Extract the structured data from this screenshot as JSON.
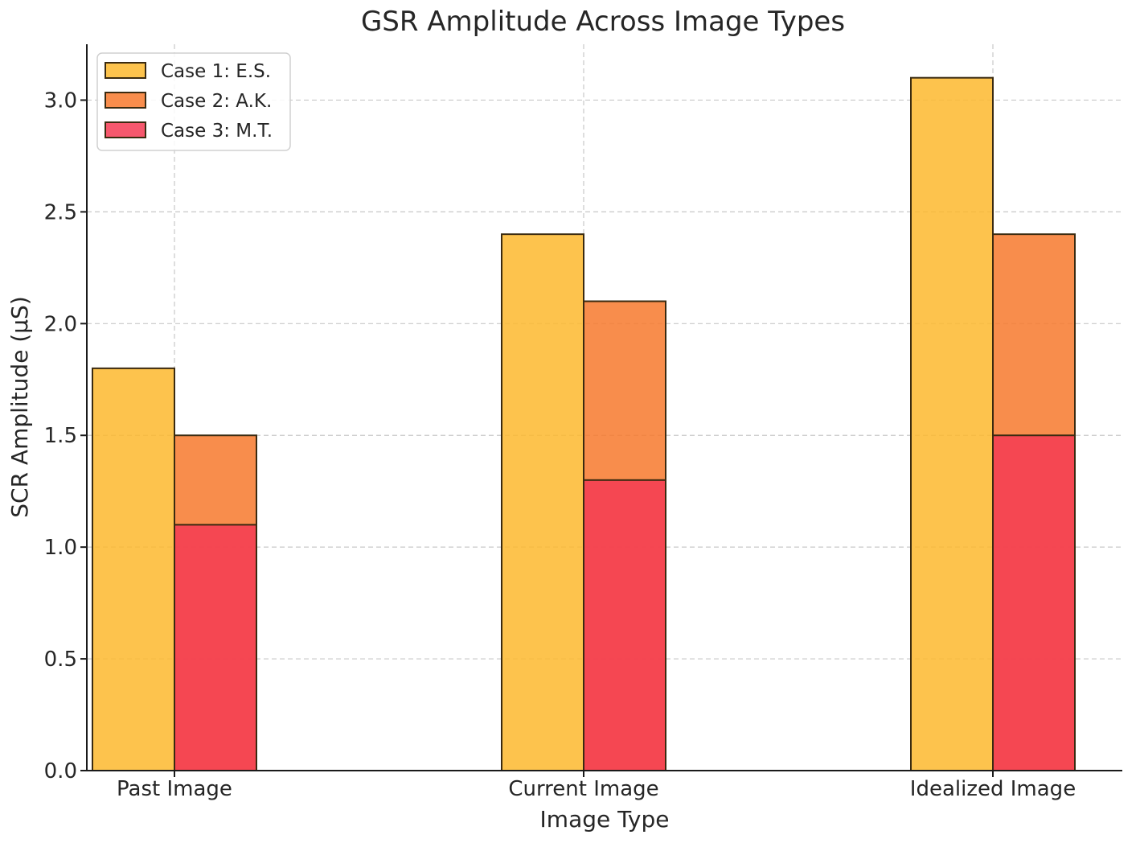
{
  "chart_data": {
    "type": "bar",
    "title": "GSR Amplitude Across Image Types",
    "xlabel": "Image Type",
    "ylabel": "SCR Amplitude (µS)",
    "categories": [
      "Past Image",
      "Current Image",
      "Idealized Image"
    ],
    "series": [
      {
        "name": "Case 1: E.S.",
        "values": [
          1.8,
          2.4,
          3.1
        ],
        "color": "#FDB92E"
      },
      {
        "name": "Case 2: A.K.",
        "values": [
          1.5,
          2.1,
          2.4
        ],
        "color": "#F7792D"
      },
      {
        "name": "Case 3: M.T.",
        "values": [
          1.1,
          1.3,
          1.5
        ],
        "color": "#F43B54"
      }
    ],
    "ylim": [
      0,
      3.25
    ],
    "yticks": [
      "0.0",
      "0.5",
      "1.0",
      "1.5",
      "2.0",
      "2.5",
      "3.0"
    ],
    "grid": true,
    "legend_position": "top-left",
    "bars_overlap": true
  }
}
